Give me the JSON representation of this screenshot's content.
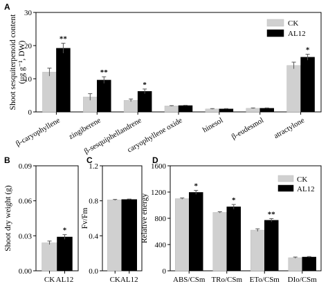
{
  "colors": {
    "CK": "#d0d0d0",
    "AL12": "#000000"
  },
  "chart_data": [
    {
      "panel": "A",
      "type": "bar",
      "ylabel_line1": "Shoot sesquiterpenoid content",
      "ylabel_line2": "(μg g⁻¹, DW)",
      "ylim": [
        0,
        30
      ],
      "yticks": [
        0,
        10,
        20,
        30
      ],
      "categories": [
        "β-caryophyllene",
        "zingiberene",
        "β-sesquiphellandrene",
        "caryophyllene oxide",
        "hinesol",
        "β-eudesmol",
        "atractylone"
      ],
      "legend_placement": "top-right",
      "series": [
        {
          "name": "CK",
          "values": [
            12,
            4.5,
            3.5,
            1.8,
            0.9,
            1.1,
            14
          ],
          "errors": [
            1.2,
            1.0,
            0.4,
            0.1,
            0.1,
            0.1,
            1.0
          ]
        },
        {
          "name": "AL12",
          "values": [
            19.2,
            9.6,
            6.2,
            1.9,
            0.9,
            1.1,
            16.5
          ],
          "errors": [
            1.5,
            1.0,
            0.7,
            0.1,
            0.1,
            0.1,
            0.9
          ]
        }
      ],
      "annotations": [
        "**",
        "**",
        "*",
        "",
        "",
        "",
        "*"
      ]
    },
    {
      "panel": "B",
      "type": "bar",
      "ylabel": "Shoot dry weight (g)",
      "ylim": [
        0,
        0.09
      ],
      "yticks": [
        "0.00",
        "0.03",
        "0.06",
        "0.09"
      ],
      "categories": [
        "CK",
        "AL12"
      ],
      "values": [
        0.024,
        0.029
      ],
      "errors": [
        0.0015,
        0.002
      ],
      "annotations": [
        "",
        "*"
      ]
    },
    {
      "panel": "C",
      "type": "bar",
      "ylabel": "Fv/Fm",
      "ylim": [
        0,
        1.2
      ],
      "yticks": [
        "0.0",
        "0.4",
        "0.8",
        "1.2"
      ],
      "categories": [
        "CK",
        "AL12"
      ],
      "values": [
        0.81,
        0.815
      ],
      "errors": [
        0.006,
        0.005
      ],
      "annotations": [
        "",
        ""
      ]
    },
    {
      "panel": "D",
      "type": "bar",
      "ylabel": "Relative energy",
      "ylim": [
        0,
        1600
      ],
      "yticks": [
        0,
        400,
        800,
        1200,
        1600
      ],
      "categories": [
        "ABS/CSm",
        "TRo/CSm",
        "ETo/CSm",
        "DIo/CSm"
      ],
      "legend_placement": "top-right",
      "series": [
        {
          "name": "CK",
          "values": [
            1100,
            890,
            620,
            200
          ],
          "errors": [
            10,
            10,
            20,
            10
          ]
        },
        {
          "name": "AL12",
          "values": [
            1195,
            975,
            770,
            210
          ],
          "errors": [
            30,
            35,
            25,
            8
          ]
        }
      ],
      "annotations": [
        "*",
        "*",
        "**",
        ""
      ]
    }
  ]
}
